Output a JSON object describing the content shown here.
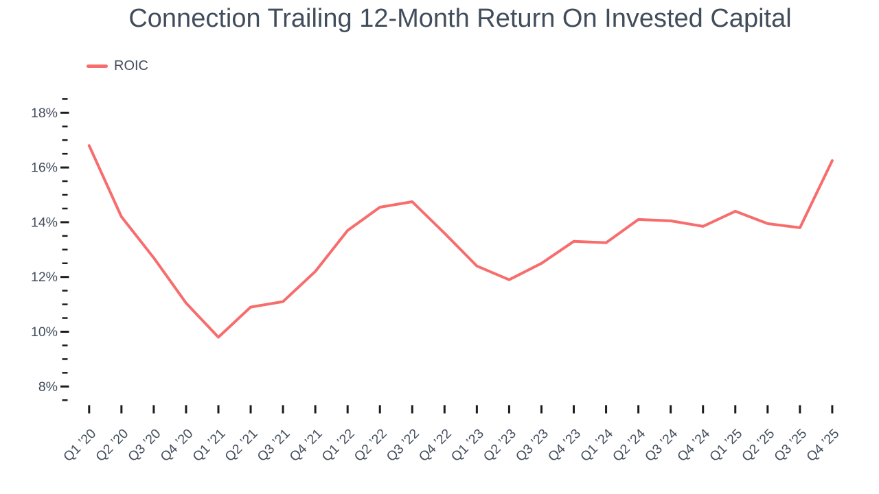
{
  "title": "Connection Trailing 12-Month Return On Invested Capital",
  "legend": {
    "items": [
      {
        "label": "ROIC",
        "color": "#F76D6D"
      }
    ],
    "position": "top-left"
  },
  "colors": {
    "line": "#F76D6D",
    "text": "#424D5C",
    "tick": "#1C1C1C",
    "background": "#FFFFFF"
  },
  "chart_data": {
    "type": "line",
    "title": "Connection Trailing 12-Month Return On Invested Capital",
    "categories": [
      "Q1 ’20",
      "Q2 ’20",
      "Q3 ’20",
      "Q4 ’20",
      "Q1 ’21",
      "Q2 ’21",
      "Q3 ’21",
      "Q4 ’21",
      "Q1 ’22",
      "Q2 ’22",
      "Q3 ’22",
      "Q4 ’22",
      "Q1 ’23",
      "Q2 ’23",
      "Q3 ’23",
      "Q4 ’23",
      "Q1 ’24",
      "Q2 ’24",
      "Q3 ’24",
      "Q4 ’24",
      "Q1 ’25",
      "Q2 ’25",
      "Q3 ’25",
      "Q4 ’25"
    ],
    "series": [
      {
        "name": "ROIC",
        "values": [
          16.8,
          14.2,
          12.7,
          11.05,
          9.8,
          10.9,
          11.1,
          12.2,
          13.7,
          14.55,
          14.75,
          13.6,
          12.4,
          11.9,
          12.5,
          13.3,
          13.25,
          14.1,
          14.05,
          13.85,
          14.4,
          13.95,
          13.8,
          16.25
        ]
      }
    ],
    "xlabel": "",
    "ylabel": "",
    "y_axis": {
      "tick_values": [
        18,
        16,
        14,
        12,
        10,
        8
      ],
      "tick_labels": [
        "18%",
        "16%",
        "14%",
        "12%",
        "10%",
        "8%"
      ],
      "minor_tick_step": 0.5,
      "range": [
        7.5,
        18.5
      ],
      "unit": "%"
    },
    "x_tick_angle": -45,
    "grid": false,
    "legend_position": "top-left"
  }
}
